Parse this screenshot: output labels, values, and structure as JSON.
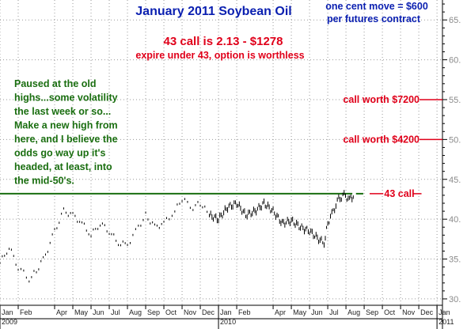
{
  "chart_data": {
    "type": "bar",
    "title": "January 2011 Soybean Oil",
    "subtitle_lines": [
      "one cent move = $600",
      "per futures contract"
    ],
    "headline": "43 call is 2.13 - $1278",
    "subheadline": "expire under 43, option is worthless",
    "comment_lines": [
      "Paused at the old",
      "highs...some volatility",
      "the last week or so...",
      "Make a new high from",
      "here, and I believe the",
      "odds go way up it's",
      "headed, at least, into",
      "the mid-50's."
    ],
    "annotations": [
      {
        "text": "call worth $7200",
        "y": 55,
        "color": "#e0001a"
      },
      {
        "text": "call worth $4200",
        "y": 50,
        "color": "#e0001a"
      },
      {
        "text": "43 call",
        "y": 43.2,
        "color": "#e0001a"
      }
    ],
    "strike_line": {
      "value": 43.2,
      "color": "#1a6e10"
    },
    "y_axis": {
      "ticks": [
        "30.",
        "35.",
        "40.",
        "45.",
        "50.",
        "55.",
        "60.",
        "65."
      ],
      "ylim": [
        29.2,
        67.5
      ]
    },
    "x_axis": {
      "months": [
        "Jan",
        "Feb",
        "Apr",
        "May",
        "Jun",
        "Jul",
        "Aug",
        "Sep",
        "Oct",
        "Nov",
        "Dec",
        "Jan",
        "Feb",
        "Apr",
        "May",
        "Jun",
        "Jul",
        "Aug",
        "Sep",
        "Oct",
        "Nov",
        "Dec",
        "Jan"
      ],
      "month_index": [
        0,
        1,
        3,
        4,
        5,
        6,
        7,
        8,
        9,
        10,
        11,
        12,
        13,
        15,
        16,
        17,
        18,
        19,
        20,
        21,
        22,
        23,
        24
      ],
      "years": [
        {
          "label": "2009",
          "index": 0
        },
        {
          "label": "2010",
          "index": 12
        },
        {
          "label": "2011",
          "index": 24
        }
      ],
      "xlim": [
        0,
        24.3
      ]
    },
    "series": [
      {
        "style": "dotted",
        "x": [
          0.0,
          0.5,
          1.0,
          1.6,
          2.0,
          2.5,
          3.0,
          3.5,
          4.0,
          4.5,
          5.0,
          5.5,
          6.0,
          6.5,
          7.0,
          7.6,
          8.0,
          8.5,
          9.0,
          9.6,
          10.0,
          10.6,
          11.0,
          11.5
        ],
        "values": [
          34.5,
          36.5,
          34.0,
          32.5,
          33.5,
          35.5,
          38.5,
          41.0,
          40.5,
          39.5,
          38.0,
          39.5,
          38.5,
          37.0,
          36.8,
          39.0,
          40.5,
          39.0,
          39.5,
          41.0,
          42.5,
          41.5,
          42.0,
          40.5
        ]
      },
      {
        "style": "solid",
        "x": [
          11.5,
          12.0,
          12.5,
          13.0,
          13.5,
          14.0,
          14.5,
          15.0,
          15.5,
          16.0,
          16.5,
          17.0,
          17.5,
          17.8,
          18.0,
          18.3,
          18.6,
          18.9,
          19.2,
          19.4
        ],
        "values": [
          40.5,
          40.0,
          41.5,
          42.0,
          40.5,
          41.0,
          42.0,
          41.0,
          39.5,
          39.8,
          39.0,
          38.5,
          37.5,
          37.0,
          39.5,
          41.0,
          42.5,
          43.0,
          42.5,
          42.8
        ]
      }
    ]
  }
}
